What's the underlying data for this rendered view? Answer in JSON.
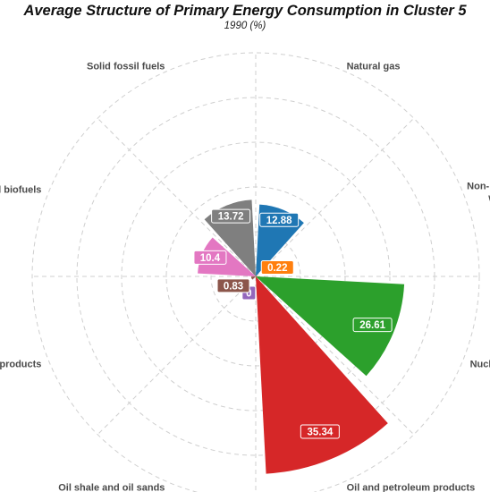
{
  "title": "Average Structure of Primary Energy Consumption in Cluster 5",
  "subtitle": "1990 (%)",
  "chart_data": {
    "type": "polar_bar",
    "title": "Average Structure of Primary Energy Consumption in Cluster 5",
    "subtitle": "1990 (%)",
    "categories": [
      "Natural gas",
      "Non-renewable waste",
      "Nuclear heat",
      "Oil and petroleum products",
      "Oil shale and oil sands",
      "Peat and peat products",
      "Renewables and biofuels",
      "Solid fossil fuels"
    ],
    "values": [
      12.88,
      0.22,
      26.61,
      35.34,
      0.0,
      0.83,
      10.4,
      13.72
    ],
    "value_labels": [
      "12.88",
      "0.22",
      "26.61",
      "35.34",
      "0",
      "0.83",
      "10.4",
      "13.72"
    ],
    "colors": [
      "#1f77b4",
      "#ff7f0e",
      "#2ca02c",
      "#d62728",
      "#9467bd",
      "#8c564b",
      "#e377c2",
      "#7f7f7f"
    ],
    "radial_max": 40,
    "grid": true,
    "legend": "none"
  }
}
